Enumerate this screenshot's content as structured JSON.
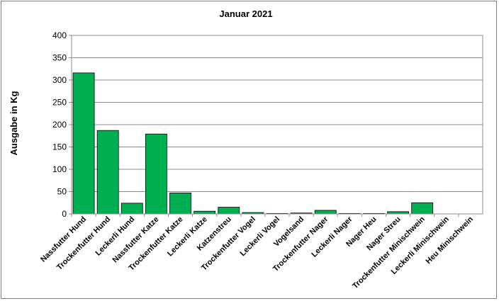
{
  "chart_data": {
    "type": "bar",
    "title": "Januar 2021",
    "xlabel": "",
    "ylabel": "Ausgabe in Kg",
    "ylim": [
      0,
      400
    ],
    "yticks": [
      0,
      50,
      100,
      150,
      200,
      250,
      300,
      350,
      400
    ],
    "grid": true,
    "legend": "none",
    "bar_color": "#00b050",
    "categories": [
      "Nassfutter Hund",
      "Trockenfutter Hund",
      "Leckerli Hund",
      "Nassfutter Katze",
      "Trockenfutter Katze",
      "Leckerli Katze",
      "Katzenstreu",
      "Trockenfutter Vogel",
      "Leckerli Vogel",
      "Vogelsand",
      "Trockenfutter Nager",
      "Leckerli Nager",
      "Nager Heu",
      "Nager Streu",
      "Trockenfutter Minischwein",
      "Leckerli Minischwein",
      "Heu Minischwein"
    ],
    "values": [
      316,
      187,
      24,
      179,
      47,
      6,
      15,
      3,
      1,
      2,
      8,
      1,
      1,
      5,
      25,
      0,
      0
    ]
  }
}
